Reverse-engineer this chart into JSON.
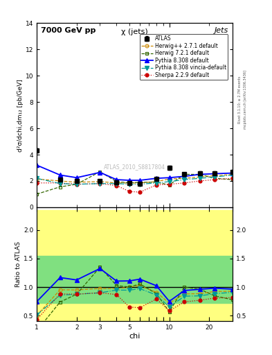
{
  "title_top": "7000 GeV pp",
  "title_right": "Jets",
  "plot_title": "χ (jets)",
  "xlabel": "chi",
  "ylabel_main": "d²σ/dchi,dm₁₂ [pb/GeV]",
  "ylabel_ratio": "Ratio to ATLAS",
  "right_label_top": "Rivet 3.1.10; ≥ 2.7M events",
  "right_label_bottom": "mcplots.cern.ch [arXiv:1306.3436]",
  "watermark": "ATLAS_2010_S8817804",
  "chi_values": [
    1.0,
    1.5,
    2.0,
    3.0,
    4.0,
    5.0,
    6.0,
    8.0,
    10.0,
    13.0,
    17.0,
    22.0,
    30.0
  ],
  "atlas_data": [
    4.3,
    2.1,
    2.0,
    2.0,
    1.9,
    1.85,
    1.8,
    2.15,
    3.0,
    2.5,
    2.6,
    2.6,
    2.7
  ],
  "atlas_err": [
    0.15,
    0.1,
    0.08,
    0.08,
    0.08,
    0.08,
    0.08,
    0.1,
    0.15,
    0.12,
    0.12,
    0.12,
    0.12
  ],
  "herwig_pp": [
    2.15,
    2.0,
    1.9,
    1.95,
    1.85,
    1.85,
    1.85,
    1.95,
    2.15,
    2.2,
    2.3,
    2.4,
    2.5
  ],
  "herwig721": [
    1.0,
    1.55,
    1.75,
    2.7,
    1.95,
    1.85,
    1.9,
    1.9,
    1.7,
    2.5,
    2.5,
    2.2,
    2.1
  ],
  "pythia8_default": [
    3.2,
    2.45,
    2.25,
    2.65,
    2.1,
    2.05,
    2.05,
    2.2,
    2.25,
    2.35,
    2.5,
    2.55,
    2.6
  ],
  "pythia8_vincia": [
    2.2,
    1.8,
    1.75,
    1.8,
    1.8,
    1.75,
    1.75,
    1.85,
    1.95,
    2.1,
    2.2,
    2.3,
    2.45
  ],
  "sherpa": [
    1.85,
    1.85,
    1.75,
    1.8,
    1.65,
    1.2,
    1.15,
    1.7,
    1.75,
    1.85,
    2.0,
    2.1,
    2.2
  ],
  "ylim_main": [
    0,
    14
  ],
  "ylim_ratio": [
    0.4,
    2.4
  ],
  "yticks_main": [
    0,
    2,
    4,
    6,
    8,
    10,
    12,
    14
  ],
  "yticks_ratio": [
    0.5,
    1.0,
    1.5,
    2.0
  ],
  "band_yellow_outer": [
    0.4,
    2.35
  ],
  "band_green_inner": [
    0.72,
    1.55
  ],
  "colors": {
    "atlas": "#000000",
    "herwig_pp": "#cc8800",
    "herwig721": "#336600",
    "pythia8_default": "#0000ff",
    "pythia8_vincia": "#009999",
    "sherpa": "#cc0000"
  },
  "band_yellow_color": "#ffff80",
  "band_green_color": "#80e080"
}
